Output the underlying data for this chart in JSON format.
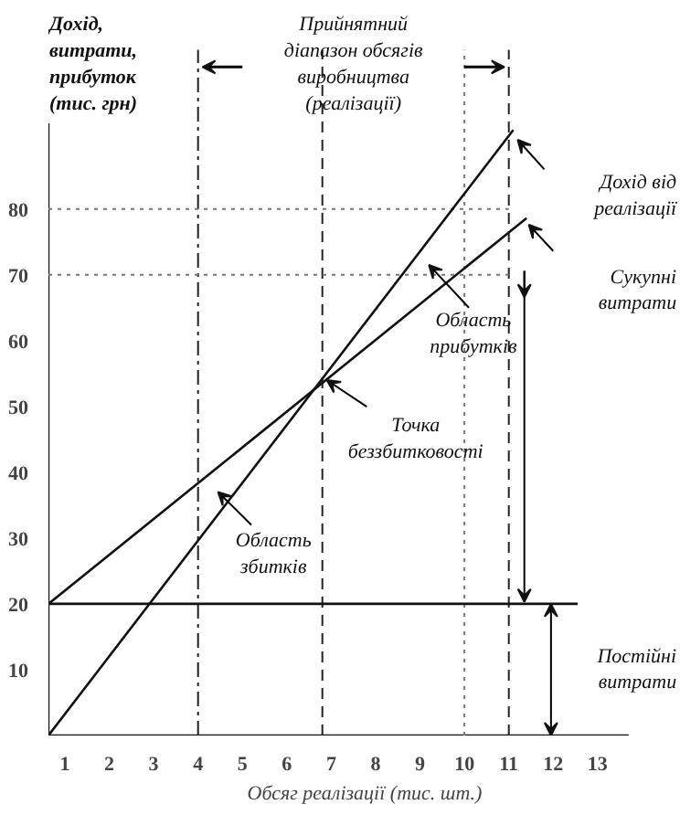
{
  "chart_data": {
    "type": "line",
    "xlabel": "Обсяг реалізації (тис. шт.)",
    "ylabel": "Дохід,\nвитрати,\nприбуток\n(тис. грн)",
    "xlim": [
      0.63,
      13.7
    ],
    "ylim": [
      0,
      93
    ],
    "xticks": [
      1,
      2,
      3,
      4,
      5,
      6,
      7,
      8,
      9,
      10,
      11,
      12,
      13
    ],
    "yticks": [
      10,
      20,
      30,
      40,
      50,
      60,
      70,
      80
    ],
    "grid": false,
    "marker": "none",
    "line_style": "solid",
    "series": [
      {
        "name": "Дохід від\nреалізації",
        "color": "#111111",
        "x": [
          0.63,
          11.1
        ],
        "values": [
          0,
          92
        ]
      },
      {
        "name": "Сукупні\nвитрати",
        "color": "#111111",
        "x": [
          0.63,
          11.4
        ],
        "values": [
          20,
          78.6
        ]
      },
      {
        "name": "Постійні\nвитрати",
        "color": "#111111",
        "x": [
          0.63,
          12.55
        ],
        "values": [
          20,
          20
        ]
      }
    ],
    "ref_lines": [
      {
        "axis": "x",
        "value": 4,
        "line_style": "dashdot",
        "color": "#222222"
      },
      {
        "axis": "x",
        "value": 6.8,
        "line_style": "dashed",
        "color": "#222222"
      },
      {
        "axis": "x",
        "value": 10,
        "line_style": "dotted",
        "color": "#777777"
      },
      {
        "axis": "x",
        "value": 11,
        "line_style": "dashed",
        "color": "#222222"
      },
      {
        "axis": "y",
        "value": 80,
        "line_style": "dotted",
        "color": "#777777"
      },
      {
        "axis": "y",
        "value": 70,
        "line_style": "dotted",
        "color": "#777777"
      }
    ],
    "annotations": [
      "Прийнятний\nдіапазон обсягів\nвиробництва\n(реалізації)",
      {
        "text": "Точка\nбеззбитковості",
        "x": 6.9,
        "y": 54
      },
      "Область\nприбутків",
      "Область\nзбитків"
    ]
  }
}
